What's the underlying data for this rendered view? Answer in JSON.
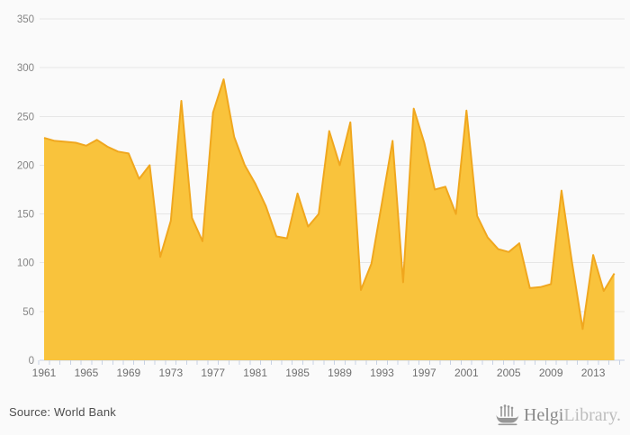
{
  "footer": {
    "source": "Source: World Bank",
    "logo": {
      "brand_bold": "Helgi",
      "brand_light": "Library."
    }
  },
  "chart_data": {
    "type": "area",
    "title": "",
    "xlabel": "",
    "ylabel": "",
    "x": [
      1961,
      1962,
      1963,
      1964,
      1965,
      1966,
      1967,
      1968,
      1969,
      1970,
      1971,
      1972,
      1973,
      1974,
      1975,
      1976,
      1977,
      1978,
      1979,
      1980,
      1981,
      1982,
      1983,
      1984,
      1985,
      1986,
      1987,
      1988,
      1989,
      1990,
      1991,
      1992,
      1993,
      1994,
      1995,
      1996,
      1997,
      1998,
      1999,
      2000,
      2001,
      2002,
      2003,
      2004,
      2005,
      2006,
      2007,
      2008,
      2009,
      2010,
      2011,
      2012,
      2013,
      2014,
      2015
    ],
    "values": [
      228,
      225,
      224,
      223,
      220,
      226,
      219,
      214,
      212,
      186,
      200,
      106,
      143,
      266,
      146,
      122,
      254,
      288,
      229,
      200,
      181,
      158,
      127,
      125,
      171,
      137,
      150,
      235,
      200,
      244,
      72,
      99,
      162,
      225,
      80,
      258,
      223,
      175,
      178,
      150,
      256,
      148,
      126,
      114,
      111,
      120,
      74,
      75,
      78,
      174,
      100,
      32,
      108,
      71,
      89
    ],
    "ylim": [
      0,
      350
    ],
    "y_ticks": [
      0,
      50,
      100,
      150,
      200,
      250,
      300,
      350
    ],
    "x_tick_labels": [
      1961,
      1965,
      1969,
      1973,
      1977,
      1981,
      1985,
      1989,
      1993,
      1997,
      2001,
      2005,
      2009,
      2013
    ],
    "grid": true,
    "legend": false,
    "colors": {
      "area_fill": "#f9c33c",
      "area_line": "#f0a71e",
      "gridline": "#e6e6e6",
      "axis": "#c8d2e4",
      "y_label": "#858585",
      "x_label": "#6f6f6f",
      "background": "#fafafa"
    }
  }
}
